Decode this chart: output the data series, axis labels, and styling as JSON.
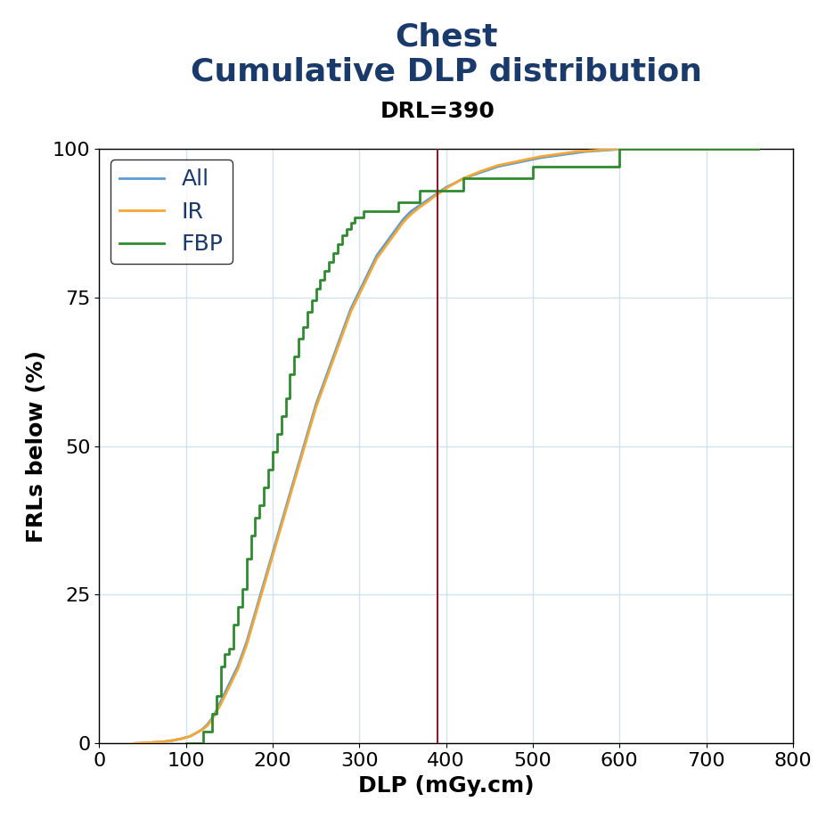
{
  "title_line1": "Chest",
  "title_line2": "Cumulative DLP distribution",
  "title_color": "#1a3a6b",
  "drl_label": "DRL=390",
  "drl_value": 390,
  "drl_line_color": "#8b1a2a",
  "xlabel": "DLP (mGy.cm)",
  "ylabel": "FRLs below (%)",
  "xlim": [
    0,
    800
  ],
  "ylim": [
    0,
    100
  ],
  "xticks": [
    0,
    100,
    200,
    300,
    400,
    500,
    600,
    700,
    800
  ],
  "yticks": [
    0,
    25,
    50,
    75,
    100
  ],
  "grid_color": "#d0e4f0",
  "background_color": "#ffffff",
  "legend_labels": [
    "All",
    "IR",
    "FBP"
  ],
  "line_colors": [
    "#5b9bd5",
    "#f4a833",
    "#2e8b2e"
  ],
  "all_x": [
    40,
    55,
    65,
    75,
    85,
    95,
    105,
    115,
    120,
    125,
    130,
    135,
    140,
    145,
    150,
    155,
    160,
    165,
    170,
    175,
    180,
    185,
    190,
    195,
    200,
    205,
    210,
    215,
    220,
    225,
    230,
    235,
    240,
    245,
    250,
    255,
    260,
    265,
    270,
    275,
    280,
    285,
    290,
    295,
    300,
    305,
    310,
    315,
    320,
    325,
    330,
    335,
    340,
    345,
    350,
    355,
    360,
    365,
    370,
    375,
    380,
    385,
    390,
    395,
    400,
    410,
    420,
    430,
    440,
    450,
    460,
    470,
    480,
    490,
    500,
    510,
    520,
    530,
    540,
    550,
    560,
    570,
    580,
    590,
    600,
    620,
    640,
    660,
    680,
    700,
    720,
    740,
    760
  ],
  "all_y": [
    0.0,
    0.1,
    0.2,
    0.3,
    0.5,
    0.8,
    1.2,
    2.0,
    2.5,
    3.2,
    4.2,
    5.5,
    7.0,
    8.5,
    10.0,
    11.5,
    13.0,
    15.0,
    17.0,
    19.5,
    22.0,
    24.5,
    27.0,
    29.5,
    32.0,
    34.5,
    37.0,
    39.5,
    42.0,
    44.5,
    47.0,
    49.5,
    52.0,
    54.5,
    57.0,
    59.0,
    61.0,
    63.0,
    65.0,
    67.0,
    69.0,
    71.0,
    73.0,
    74.5,
    76.0,
    77.5,
    79.0,
    80.5,
    82.0,
    83.0,
    84.0,
    85.0,
    86.0,
    87.0,
    88.0,
    88.8,
    89.5,
    90.0,
    90.5,
    91.0,
    91.5,
    92.0,
    92.5,
    93.0,
    93.5,
    94.2,
    95.0,
    95.5,
    96.0,
    96.5,
    97.0,
    97.3,
    97.6,
    97.9,
    98.2,
    98.5,
    98.7,
    98.9,
    99.1,
    99.3,
    99.5,
    99.6,
    99.7,
    99.8,
    99.9,
    99.9,
    99.9,
    99.9,
    99.9,
    99.9,
    99.9,
    99.9,
    99.9
  ],
  "ir_x": [
    40,
    55,
    65,
    75,
    85,
    95,
    105,
    115,
    120,
    125,
    130,
    135,
    140,
    145,
    150,
    155,
    160,
    165,
    170,
    175,
    180,
    185,
    190,
    195,
    200,
    205,
    210,
    215,
    220,
    225,
    230,
    235,
    240,
    245,
    250,
    255,
    260,
    265,
    270,
    275,
    280,
    285,
    290,
    295,
    300,
    305,
    310,
    315,
    320,
    325,
    330,
    335,
    340,
    345,
    350,
    355,
    360,
    365,
    370,
    375,
    380,
    385,
    390,
    395,
    400,
    410,
    420,
    430,
    440,
    450,
    460,
    470,
    480,
    490,
    500,
    510,
    520,
    530,
    540,
    550,
    560,
    570,
    580,
    590,
    600,
    620,
    640,
    660,
    680,
    700,
    720,
    740,
    760
  ],
  "ir_y": [
    0.0,
    0.1,
    0.2,
    0.3,
    0.5,
    0.8,
    1.2,
    2.0,
    2.4,
    3.0,
    4.0,
    5.2,
    6.5,
    8.0,
    9.5,
    11.0,
    12.5,
    14.5,
    16.5,
    19.0,
    21.5,
    24.0,
    26.5,
    29.0,
    31.5,
    34.0,
    36.5,
    39.0,
    41.5,
    44.0,
    46.5,
    49.0,
    51.5,
    54.0,
    56.5,
    58.5,
    60.5,
    62.5,
    64.5,
    66.5,
    68.5,
    70.5,
    72.5,
    74.0,
    75.5,
    77.0,
    78.5,
    80.0,
    81.5,
    82.5,
    83.5,
    84.5,
    85.5,
    86.5,
    87.5,
    88.3,
    89.0,
    89.6,
    90.2,
    90.7,
    91.2,
    91.8,
    92.3,
    92.8,
    93.3,
    94.2,
    95.0,
    95.6,
    96.2,
    96.7,
    97.2,
    97.5,
    97.8,
    98.1,
    98.4,
    98.7,
    98.9,
    99.1,
    99.3,
    99.5,
    99.6,
    99.7,
    99.8,
    99.9,
    99.9,
    99.9,
    99.9,
    99.9,
    99.9,
    99.9,
    99.9,
    99.9,
    99.9
  ],
  "fbp_x": [
    100,
    120,
    130,
    135,
    140,
    145,
    150,
    155,
    160,
    165,
    170,
    175,
    180,
    185,
    190,
    195,
    200,
    205,
    210,
    215,
    220,
    225,
    230,
    235,
    240,
    245,
    250,
    255,
    260,
    265,
    270,
    275,
    280,
    285,
    290,
    295,
    300,
    305,
    310,
    315,
    320,
    325,
    330,
    335,
    340,
    345,
    350,
    355,
    360,
    365,
    370,
    375,
    380,
    385,
    390,
    395,
    400,
    420,
    440,
    460,
    480,
    500,
    520,
    540,
    560,
    580,
    600,
    760
  ],
  "fbp_y": [
    0.0,
    2.0,
    5.0,
    8.0,
    13.0,
    15.0,
    16.0,
    20.0,
    23.0,
    26.0,
    31.0,
    35.0,
    38.0,
    40.0,
    43.0,
    46.0,
    49.0,
    52.0,
    55.0,
    58.0,
    62.0,
    65.0,
    68.0,
    70.0,
    72.5,
    74.5,
    76.5,
    78.0,
    79.5,
    81.0,
    82.5,
    84.0,
    85.5,
    86.5,
    87.5,
    88.5,
    88.5,
    89.5,
    89.5,
    89.5,
    89.5,
    89.5,
    89.5,
    89.5,
    89.5,
    91.0,
    91.0,
    91.0,
    91.0,
    91.0,
    93.0,
    93.0,
    93.0,
    93.0,
    93.0,
    93.0,
    93.0,
    95.0,
    95.0,
    95.0,
    95.0,
    97.0,
    97.0,
    97.0,
    97.0,
    97.0,
    100.0,
    100.0
  ],
  "title_fontsize": 26,
  "label_fontsize": 18,
  "tick_fontsize": 16,
  "drl_fontsize": 18,
  "legend_fontsize": 18,
  "line_width": 2.0
}
